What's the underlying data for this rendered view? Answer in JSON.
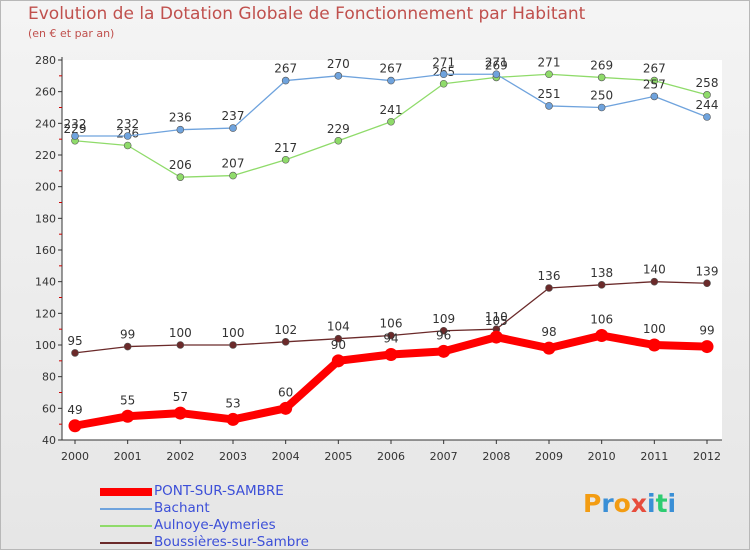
{
  "header": {
    "title": "Evolution de la Dotation Globale de Fonctionnement par Habitant",
    "subtitle": "(en € et par an)"
  },
  "chart_data": {
    "type": "line",
    "title": "Evolution de la Dotation Globale de Fonctionnement par Habitant",
    "subtitle": "(en € et par an)",
    "xlabel": "",
    "ylabel": "",
    "ylim": [
      40,
      280
    ],
    "yticks": [
      40,
      60,
      80,
      100,
      120,
      140,
      160,
      180,
      200,
      220,
      240,
      260,
      280
    ],
    "grid": false,
    "categories": [
      "2000",
      "2001",
      "2002",
      "2003",
      "2004",
      "2005",
      "2006",
      "2007",
      "2008",
      "2009",
      "2010",
      "2011",
      "2012"
    ],
    "series": [
      {
        "name": "PONT-SUR-SAMBRE",
        "color": "#ff0000",
        "values": [
          49,
          55,
          57,
          53,
          60,
          90,
          94,
          96,
          105,
          98,
          106,
          100,
          99
        ]
      },
      {
        "name": "Bachant",
        "color": "#6fa3dd",
        "values": [
          232,
          232,
          236,
          237,
          267,
          270,
          267,
          271,
          271,
          251,
          250,
          257,
          244
        ]
      },
      {
        "name": "Aulnoye-Aymeries",
        "color": "#8fdb6a",
        "values": [
          229,
          226,
          206,
          207,
          217,
          229,
          241,
          265,
          269,
          271,
          269,
          267,
          258
        ]
      },
      {
        "name": "Boussières-sur-Sambre",
        "color": "#6b2a2a",
        "values": [
          95,
          99,
          100,
          100,
          102,
          104,
          106,
          109,
          110,
          136,
          138,
          140,
          139
        ]
      }
    ],
    "legend_position": "bottom-left"
  },
  "logo": {
    "letters": [
      "P",
      "r",
      "o",
      "x",
      "i",
      "t",
      "i"
    ],
    "colors": [
      "#f39c12",
      "#3a8fd6",
      "#f39c12",
      "#e74c3c",
      "#3a8fd6",
      "#2ecc71",
      "#3a8fd6"
    ]
  }
}
